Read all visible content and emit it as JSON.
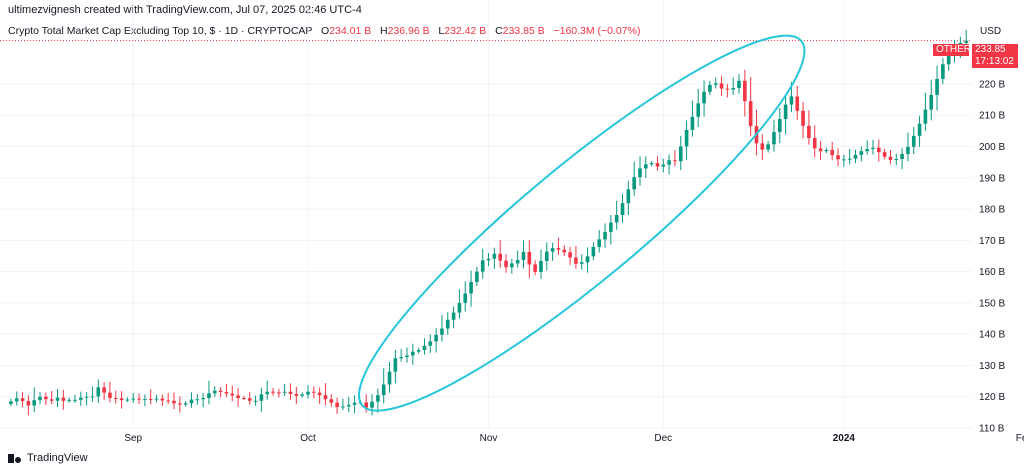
{
  "header": {
    "credit": "ultimezvignesh created with TradingView.com, Jul 07, 2025 02:46 UTC-4",
    "symbol": "Crypto Total Market Cap Excluding Top 10, $ · 1D · CRYPTOCAP",
    "o_key": "O",
    "o_val": "234.01 B",
    "h_key": "H",
    "h_val": "236.96 B",
    "l_key": "L",
    "l_val": "232.42 B",
    "c_key": "C",
    "c_val": "233.85 B",
    "chg": "−160.3M (−0.07%)"
  },
  "price_badge": {
    "name": "OTHERS",
    "price": "233.85 B",
    "countdown": "17:13:02"
  },
  "currency": "USD",
  "footer": {
    "brand": "TradingView"
  },
  "colors": {
    "up": "#089981",
    "down": "#f23645",
    "ellipse": "#26c6da"
  },
  "chart_data": {
    "type": "candlestick",
    "y_unit": "B",
    "ylim": [
      110,
      243
    ],
    "y_ticks": [
      110,
      120,
      130,
      140,
      150,
      160,
      170,
      180,
      190,
      200,
      210,
      220
    ],
    "x_ticks": [
      {
        "label": "Sep",
        "day": 21,
        "bold": false
      },
      {
        "label": "Oct",
        "day": 51,
        "bold": false
      },
      {
        "label": "Nov",
        "day": 82,
        "bold": false
      },
      {
        "label": "Dec",
        "day": 112,
        "bold": false
      },
      {
        "label": "2024",
        "day": 143,
        "bold": true
      },
      {
        "label": "Feb",
        "day": 174,
        "bold": false
      }
    ],
    "last_price": 233.85,
    "close": [
      118.5,
      119.5,
      118.6,
      117.2,
      118.9,
      120.0,
      119.2,
      118.7,
      119.7,
      118.7,
      119.0,
      119.0,
      119.7,
      120.0,
      120.1,
      123.0,
      121.3,
      119.6,
      119.5,
      118.9,
      119.1,
      119.4,
      119.3,
      119.3,
      119.2,
      119.4,
      118.8,
      118.7,
      117.9,
      117.5,
      117.9,
      119.1,
      119.2,
      119.6,
      121.1,
      121.9,
      121.5,
      121.0,
      120.4,
      119.6,
      119.5,
      118.7,
      118.7,
      120.8,
      121.6,
      121.4,
      121.3,
      121.6,
      120.9,
      120.3,
      120.7,
      121.6,
      121.3,
      120.5,
      119.2,
      118.1,
      116.7,
      116.9,
      117.4,
      118.1,
      118.2,
      116.5,
      118.4,
      120.5,
      123.9,
      128.0,
      132.3,
      132.7,
      133.2,
      134.4,
      134.9,
      136.3,
      137.7,
      139.8,
      141.8,
      144.6,
      146.9,
      150.0,
      153.0,
      156.7,
      160.0,
      163.6,
      164.1,
      165.7,
      163.5,
      161.4,
      162.6,
      163.7,
      166.3,
      162.3,
      159.9,
      163.4,
      166.4,
      167.5,
      167.0,
      166.2,
      164.5,
      162.5,
      163.0,
      164.9,
      167.9,
      170.3,
      172.7,
      175.7,
      178.1,
      181.9,
      186.3,
      190.2,
      193.0,
      194.3,
      194.7,
      193.6,
      194.2,
      195.6,
      195.3,
      200.0,
      205.3,
      209.5,
      213.8,
      217.5,
      219.7,
      220.2,
      218.5,
      218.2,
      218.7,
      221.0,
      214.5,
      206.5,
      201.0,
      199.0,
      200.7,
      204.6,
      208.8,
      213.4,
      216.0,
      211.4,
      206.6,
      202.7,
      199.4,
      198.5,
      198.9,
      197.2,
      195.9,
      195.9,
      196.1,
      197.3,
      198.5,
      199.2,
      199.6,
      198.2,
      196.7,
      195.7,
      196.0,
      197.6,
      199.9,
      203.4,
      207.3,
      211.8,
      216.5,
      221.6,
      226.3,
      229.4,
      231.5,
      233.1,
      233.8
    ]
  }
}
